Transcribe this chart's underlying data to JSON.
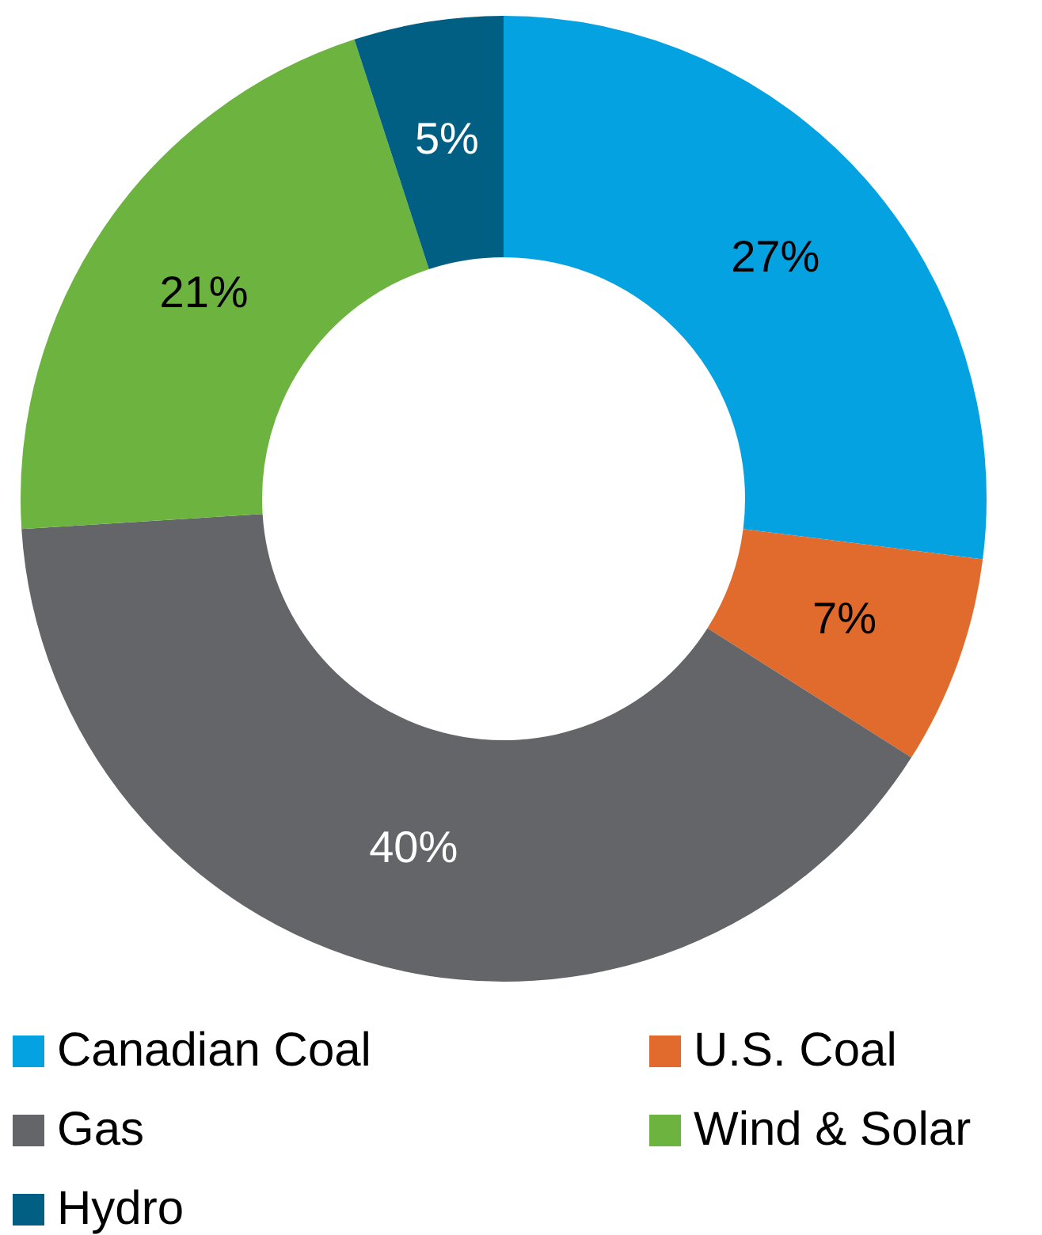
{
  "chart_data": {
    "type": "donut",
    "categories": [
      "Canadian Coal",
      "U.S. Coal",
      "Gas",
      "Wind & Solar",
      "Hydro"
    ],
    "values": [
      27,
      7,
      40,
      21,
      5
    ],
    "colors": [
      "#05a2e2",
      "#e06b2d",
      "#636569",
      "#6db33f",
      "#005f83"
    ],
    "value_labels": [
      "27%",
      "7%",
      "40%",
      "21%",
      "5%"
    ],
    "legend": "bottom"
  }
}
